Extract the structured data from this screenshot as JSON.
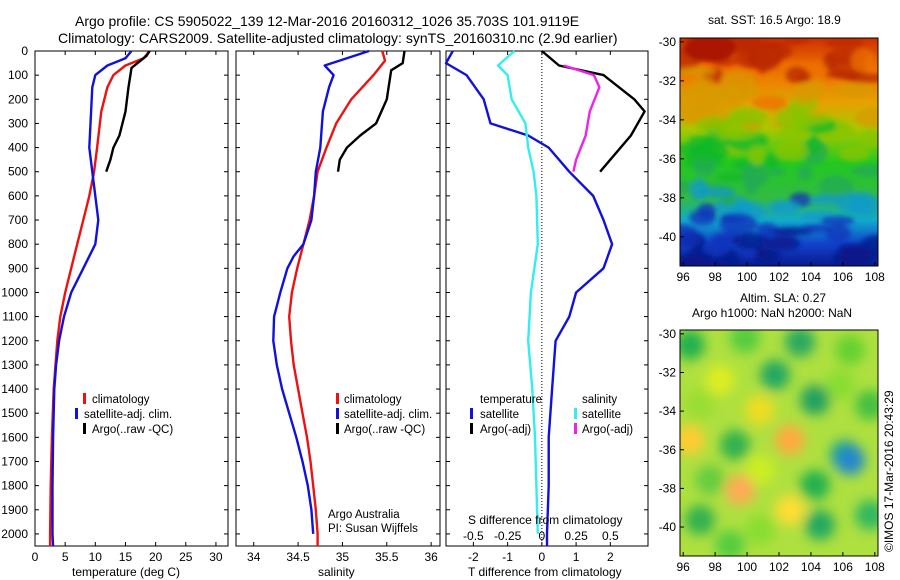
{
  "title": {
    "line1": "Argo profile: CS 5905022_139 12-Mar-2016 20160312_1026 35.703S 101.9119E",
    "line2": "Climatology: CARS2009. Satellite-adjusted climatology: synTS_20160310.nc (2.9d earlier)"
  },
  "depth_ticks": [
    "0",
    "100",
    "200",
    "300",
    "400",
    "500",
    "600",
    "700",
    "800",
    "900",
    "1000",
    "1100",
    "1200",
    "1300",
    "1400",
    "1500",
    "1600",
    "1700",
    "1800",
    "1900",
    "2000"
  ],
  "panels": {
    "temperature": {
      "xlabel": "temperature (deg C)",
      "xticks": [
        "0",
        "5",
        "10",
        "15",
        "20",
        "25",
        "30"
      ],
      "legend": [
        "climatology",
        "satellite-adj. clim.",
        "Argo(..raw -QC)"
      ]
    },
    "salinity": {
      "xlabel": "salinity",
      "xticks": [
        "34",
        "34.5",
        "35",
        "35.5",
        "36"
      ],
      "legend": [
        "climatology",
        "satellite-adj. clim.",
        "Argo(..raw -QC)"
      ],
      "credit": [
        "Argo Australia",
        "PI: Susan Wijffels"
      ]
    },
    "difference": {
      "xlabel": "T difference from climatology",
      "xticks": [
        "-2",
        "-1",
        "0",
        "1",
        "2"
      ],
      "top_label": "S difference from climatology",
      "top_ticks": [
        "-0.5",
        "-0.25",
        "0",
        "0.25",
        "0.5"
      ],
      "legend_head_temp": "temperature",
      "legend_head_sal": "salinity",
      "legend_temp": [
        "satellite",
        "Argo(-adj)"
      ],
      "legend_sal": [
        "satellite",
        "Argo(-adj)"
      ]
    }
  },
  "maps": {
    "sst_title": "sat. SST: 16.5 Argo: 18.9",
    "sla_title1": "Altim. SLA: 0.27",
    "sla_title2": "Argo h1000: NaN h2000: NaN",
    "yticks": [
      "-30",
      "-32",
      "-34",
      "-36",
      "-38",
      "-40"
    ],
    "xticks": [
      "96",
      "98",
      "100",
      "102",
      "104",
      "106",
      "108"
    ]
  },
  "watermark": "©IMOS 17-Mar-2016 20:43:29",
  "colors": {
    "climatology": "#ee1111",
    "satellite_adj": "#1111dd",
    "argo": "#000000",
    "satellite_sal": "#33eeee",
    "argo_sal": "#ee22ee"
  },
  "chart_data": [
    {
      "type": "line",
      "name": "temperature profile",
      "xlim": [
        0,
        32
      ],
      "ylim": [
        2050,
        0
      ],
      "series": [
        {
          "name": "climatology",
          "color": "#ee1111",
          "points": [
            [
              19,
              0
            ],
            [
              18,
              30
            ],
            [
              15,
              60
            ],
            [
              13,
              100
            ],
            [
              12,
              150
            ],
            [
              11,
              250
            ],
            [
              10.3,
              400
            ],
            [
              9.8,
              500
            ],
            [
              9,
              600
            ],
            [
              8,
              700
            ],
            [
              7,
              800
            ],
            [
              6,
              900
            ],
            [
              5,
              1000
            ],
            [
              4.2,
              1100
            ],
            [
              3.7,
              1200
            ],
            [
              3.4,
              1300
            ],
            [
              3.1,
              1400
            ],
            [
              2.8,
              1600
            ],
            [
              2.6,
              1800
            ],
            [
              2.5,
              2000
            ],
            [
              2.5,
              2050
            ]
          ]
        },
        {
          "name": "satellite-adj. clim.",
          "color": "#1111dd",
          "points": [
            [
              16,
              0
            ],
            [
              15,
              30
            ],
            [
              12,
              60
            ],
            [
              10,
              100
            ],
            [
              9.5,
              150
            ],
            [
              9.3,
              250
            ],
            [
              9,
              400
            ],
            [
              9.5,
              500
            ],
            [
              10,
              600
            ],
            [
              10.5,
              700
            ],
            [
              10,
              800
            ],
            [
              8,
              900
            ],
            [
              6,
              1000
            ],
            [
              4.8,
              1100
            ],
            [
              4,
              1200
            ],
            [
              3.5,
              1300
            ],
            [
              3.2,
              1400
            ],
            [
              3,
              1600
            ],
            [
              2.9,
              1800
            ],
            [
              2.9,
              2000
            ],
            [
              3,
              2050
            ]
          ]
        },
        {
          "name": "Argo(..raw -QC)",
          "color": "#000000",
          "points": [
            [
              19,
              0
            ],
            [
              18.5,
              20
            ],
            [
              16,
              70
            ],
            [
              15.5,
              150
            ],
            [
              15,
              250
            ],
            [
              14,
              350
            ],
            [
              13,
              400
            ],
            [
              12.5,
              450
            ],
            [
              11.8,
              500
            ]
          ]
        }
      ]
    },
    {
      "type": "line",
      "name": "salinity profile",
      "xlim": [
        33.8,
        36.1
      ],
      "ylim": [
        2050,
        0
      ],
      "series": [
        {
          "name": "climatology",
          "color": "#ee1111",
          "points": [
            [
              35.45,
              0
            ],
            [
              35.48,
              40
            ],
            [
              35.35,
              100
            ],
            [
              35.1,
              200
            ],
            [
              34.93,
              300
            ],
            [
              34.82,
              400
            ],
            [
              34.72,
              500
            ],
            [
              34.68,
              600
            ],
            [
              34.63,
              700
            ],
            [
              34.56,
              800
            ],
            [
              34.49,
              900
            ],
            [
              34.43,
              1000
            ],
            [
              34.4,
              1100
            ],
            [
              34.42,
              1200
            ],
            [
              34.45,
              1300
            ],
            [
              34.5,
              1400
            ],
            [
              34.55,
              1500
            ],
            [
              34.6,
              1600
            ],
            [
              34.64,
              1700
            ],
            [
              34.67,
              1800
            ],
            [
              34.7,
              1900
            ],
            [
              34.72,
              2000
            ],
            [
              34.72,
              2050
            ]
          ]
        },
        {
          "name": "satellite-adj. clim.",
          "color": "#1111dd",
          "points": [
            [
              35.3,
              0
            ],
            [
              34.8,
              60
            ],
            [
              34.9,
              100
            ],
            [
              34.85,
              150
            ],
            [
              34.78,
              250
            ],
            [
              34.75,
              400
            ],
            [
              34.7,
              500
            ],
            [
              34.68,
              600
            ],
            [
              34.65,
              700
            ],
            [
              34.56,
              800
            ],
            [
              34.45,
              850
            ],
            [
              34.38,
              900
            ],
            [
              34.3,
              1000
            ],
            [
              34.23,
              1100
            ],
            [
              34.22,
              1200
            ],
            [
              34.26,
              1300
            ],
            [
              34.32,
              1400
            ],
            [
              34.4,
              1500
            ],
            [
              34.48,
              1600
            ],
            [
              34.55,
              1700
            ],
            [
              34.61,
              1800
            ],
            [
              34.65,
              1900
            ],
            [
              34.67,
              2000
            ]
          ]
        },
        {
          "name": "Argo(..raw -QC)",
          "color": "#000000",
          "points": [
            [
              35.7,
              0
            ],
            [
              35.68,
              50
            ],
            [
              35.55,
              80
            ],
            [
              35.52,
              150
            ],
            [
              35.5,
              200
            ],
            [
              35.38,
              300
            ],
            [
              35.2,
              350
            ],
            [
              35.05,
              400
            ],
            [
              34.97,
              450
            ],
            [
              34.95,
              500
            ]
          ]
        }
      ]
    },
    {
      "type": "line",
      "name": "difference from climatology",
      "xlim": [
        -2.8,
        3.1
      ],
      "ylim": [
        2050,
        0
      ],
      "series": [
        {
          "name": "temperature satellite",
          "color": "#1111dd",
          "points": [
            [
              -2.6,
              0
            ],
            [
              -2.9,
              50
            ],
            [
              -2.2,
              100
            ],
            [
              -1.7,
              200
            ],
            [
              -1.5,
              300
            ],
            [
              -0.4,
              350
            ],
            [
              0.2,
              400
            ],
            [
              0.8,
              500
            ],
            [
              1.5,
              600
            ],
            [
              1.8,
              700
            ],
            [
              2.05,
              800
            ],
            [
              1.8,
              900
            ],
            [
              1,
              1000
            ],
            [
              0.8,
              1100
            ],
            [
              0.4,
              1200
            ],
            [
              0.3,
              1400
            ],
            [
              0.2,
              1600
            ],
            [
              0.2,
              1800
            ],
            [
              0.15,
              2000
            ],
            [
              0.15,
              2050
            ]
          ]
        },
        {
          "name": "temperature Argo(-adj)",
          "color": "#000000",
          "points": [
            [
              0,
              0
            ],
            [
              0.5,
              60
            ],
            [
              1.8,
              100
            ],
            [
              2.7,
              200
            ],
            [
              3,
              250
            ],
            [
              2.6,
              350
            ],
            [
              2,
              450
            ],
            [
              1.7,
              500
            ]
          ]
        },
        {
          "name": "salinity satellite",
          "color": "#33eeee",
          "points": [
            [
              -0.2,
              0
            ],
            [
              -0.32,
              60
            ],
            [
              -0.25,
              100
            ],
            [
              -0.22,
              200
            ],
            [
              -0.12,
              300
            ],
            [
              -0.1,
              400
            ],
            [
              -0.06,
              500
            ],
            [
              -0.04,
              600
            ],
            [
              -0.03,
              800
            ],
            [
              -0.08,
              1000
            ],
            [
              -0.1,
              1200
            ],
            [
              -0.07,
              1400
            ],
            [
              -0.05,
              1600
            ],
            [
              -0.04,
              1800
            ],
            [
              -0.03,
              2000
            ]
          ]
        },
        {
          "name": "salinity Argo(-adj)",
          "color": "#ee22ee",
          "points": [
            [
              0.16,
              60
            ],
            [
              0.38,
              100
            ],
            [
              0.42,
              150
            ],
            [
              0.35,
              250
            ],
            [
              0.32,
              350
            ],
            [
              0.25,
              450
            ],
            [
              0.23,
              500
            ]
          ]
        }
      ]
    },
    {
      "type": "heatmap",
      "name": "sat. SST map",
      "xticks": [
        96,
        98,
        100,
        102,
        104,
        106,
        108
      ],
      "yticks": [
        -30,
        -32,
        -34,
        -36,
        -38,
        -40
      ],
      "xlim": [
        95.8,
        108.2
      ],
      "ylim": [
        -41.5,
        -29.8
      ]
    },
    {
      "type": "heatmap",
      "name": "Altim. SLA map",
      "xticks": [
        96,
        98,
        100,
        102,
        104,
        106,
        108
      ],
      "yticks": [
        -30,
        -32,
        -34,
        -36,
        -38,
        -40
      ],
      "xlim": [
        95.8,
        108.2
      ],
      "ylim": [
        -41.5,
        -29.8
      ]
    }
  ]
}
